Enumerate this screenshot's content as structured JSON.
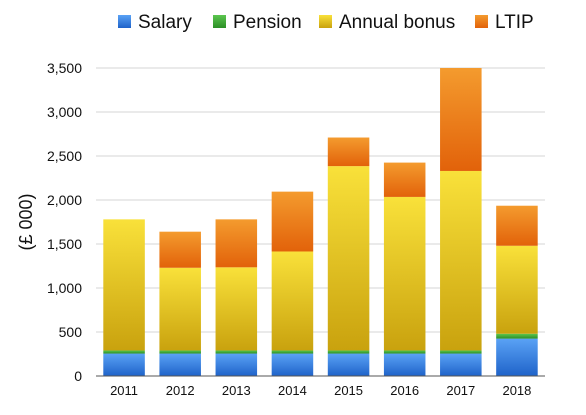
{
  "chart_data": {
    "type": "bar",
    "stacked": true,
    "categories": [
      "2011",
      "2012",
      "2013",
      "2014",
      "2015",
      "2016",
      "2017",
      "2018"
    ],
    "series": [
      {
        "name": "Salary",
        "color": "#2f7fe0",
        "values": [
          255,
          255,
          255,
          255,
          255,
          255,
          255,
          425
        ]
      },
      {
        "name": "Pension",
        "color": "#3aa832",
        "values": [
          35,
          35,
          35,
          35,
          35,
          35,
          35,
          55
        ]
      },
      {
        "name": "Annual bonus",
        "color": "#e7c21c",
        "values": [
          1490,
          940,
          945,
          1125,
          2095,
          1745,
          2040,
          1000
        ]
      },
      {
        "name": "LTIP",
        "color": "#ee7a10",
        "values": [
          0,
          410,
          545,
          680,
          325,
          390,
          1170,
          455
        ]
      }
    ],
    "title": "",
    "xlabel": "",
    "ylabel": "(£ 000)",
    "ylim": [
      0,
      3500
    ],
    "yticks": [
      "0",
      "500",
      "1,000",
      "1,500",
      "2,000",
      "2,500",
      "3,000",
      "3,500"
    ],
    "ytick_values": [
      0,
      500,
      1000,
      1500,
      2000,
      2500,
      3000,
      3500
    ],
    "grid": true,
    "legend_position": "top"
  }
}
